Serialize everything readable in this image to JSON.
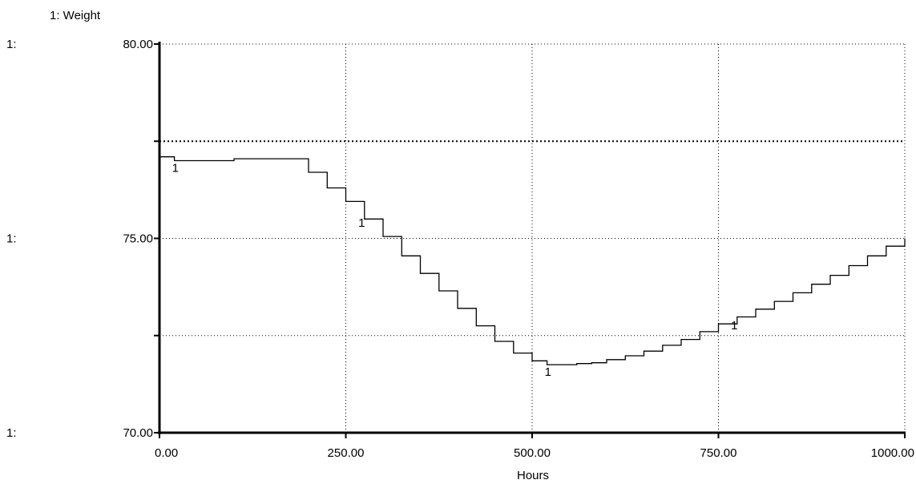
{
  "chart_data": {
    "type": "line",
    "legend_label": "1: Weight",
    "xlabel": "Hours",
    "xlim": [
      0,
      1000
    ],
    "ylim": [
      70,
      80
    ],
    "x_ticks": [
      "0.00",
      "250.00",
      "500.00",
      "750.00",
      "1000.00"
    ],
    "y_ticks": [
      {
        "prefix": "1:",
        "value": "80.00"
      },
      {
        "prefix": "1:",
        "value": "75.00"
      },
      {
        "prefix": "1:",
        "value": "70.00"
      }
    ],
    "grid": true,
    "series": [
      {
        "marker": "1",
        "color": "#000000",
        "x": [
          0,
          20,
          50,
          100,
          150,
          175,
          200,
          225,
          250,
          275,
          300,
          325,
          350,
          375,
          400,
          425,
          450,
          475,
          500,
          520,
          540,
          560,
          580,
          600,
          625,
          650,
          675,
          700,
          725,
          750,
          775,
          800,
          825,
          850,
          875,
          900,
          925,
          950,
          975,
          1000
        ],
        "y": [
          77.1,
          77.0,
          77.0,
          77.05,
          77.05,
          77.05,
          76.7,
          76.3,
          75.95,
          75.5,
          75.05,
          74.55,
          74.1,
          73.65,
          73.2,
          72.75,
          72.35,
          72.05,
          71.85,
          71.75,
          71.75,
          71.78,
          71.8,
          71.88,
          71.98,
          72.1,
          72.25,
          72.4,
          72.6,
          72.8,
          72.98,
          73.18,
          73.38,
          73.6,
          73.82,
          74.05,
          74.3,
          74.55,
          74.8,
          75.0
        ],
        "marker_x": [
          20,
          270,
          520,
          770
        ]
      }
    ]
  }
}
